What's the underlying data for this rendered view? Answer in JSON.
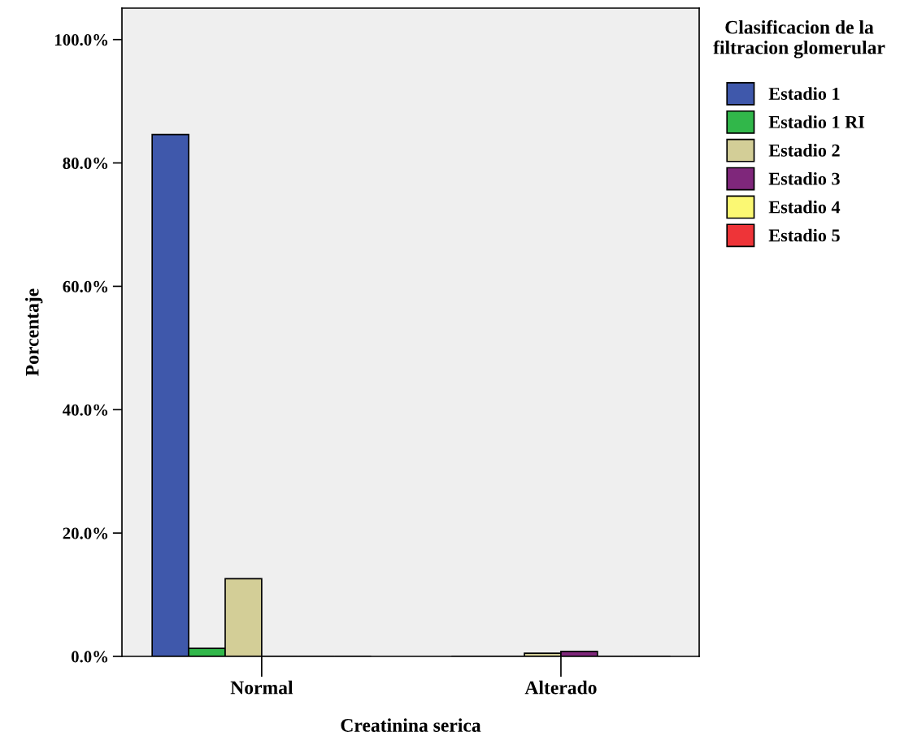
{
  "chart_data": {
    "type": "bar",
    "xlabel": "Creatinina serica",
    "ylabel": "Porcentaje",
    "legend_title": "Clasificacion de la filtracion glomerular",
    "categories": [
      "Normal",
      "Alterado"
    ],
    "series": [
      {
        "name": "Estadio 1",
        "color": "#3f58ab",
        "values": [
          84.6,
          0
        ]
      },
      {
        "name": "Estadio 1 RI",
        "color": "#31b74a",
        "values": [
          1.3,
          0
        ]
      },
      {
        "name": "Estadio 2",
        "color": "#d3ce97",
        "values": [
          12.6,
          0.5
        ]
      },
      {
        "name": "Estadio 3",
        "color": "#7f277b",
        "values": [
          0,
          0.8
        ]
      },
      {
        "name": "Estadio 4",
        "color": "#fbf873",
        "values": [
          0,
          0
        ]
      },
      {
        "name": "Estadio 5",
        "color": "#ee3438",
        "values": [
          0,
          0
        ]
      }
    ],
    "ylim": [
      0,
      105.1
    ],
    "yticks": [
      {
        "value": 0,
        "label": "0.0%"
      },
      {
        "value": 20,
        "label": "20.0%"
      },
      {
        "value": 40,
        "label": "40.0%"
      },
      {
        "value": 60,
        "label": "60.0%"
      },
      {
        "value": 80,
        "label": "80.0%"
      },
      {
        "value": 100,
        "label": "100.0%"
      }
    ],
    "grid": false,
    "legend": "right"
  }
}
